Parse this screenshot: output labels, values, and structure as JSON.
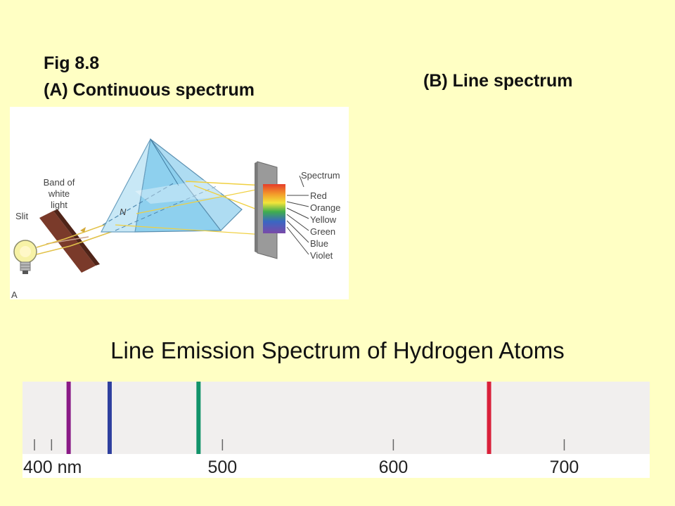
{
  "header": {
    "fig_label": "Fig 8.8",
    "continuous_label": "(A)  Continuous spectrum",
    "line_label": "(B)  Line spectrum"
  },
  "prism_diagram": {
    "band_label_lines": [
      "Band of",
      "white",
      "light"
    ],
    "slit_label": "Slit",
    "normal_label": "N",
    "corner_label": "A",
    "spectrum_label": "Spectrum",
    "colors": [
      "Red",
      "Orange",
      "Yellow",
      "Green",
      "Blue",
      "Violet"
    ]
  },
  "hydrogen": {
    "title": "Line Emission Spectrum of Hydrogen Atoms",
    "axis_labels": [
      "400 nm",
      "500",
      "600",
      "700"
    ],
    "ticks_nm": [
      400,
      500,
      600,
      700
    ],
    "axis_range_nm": [
      383,
      750
    ],
    "lines": [
      {
        "wavelength_nm": 410,
        "color": "#8a1a86"
      },
      {
        "wavelength_nm": 434,
        "color": "#2e3f9e"
      },
      {
        "wavelength_nm": 486,
        "color": "#12936a"
      },
      {
        "wavelength_nm": 656,
        "color": "#d9203a"
      }
    ]
  }
}
